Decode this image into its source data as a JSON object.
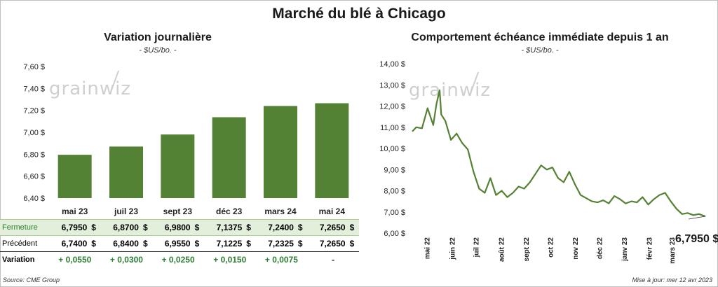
{
  "title": "Marché du blé à Chicago",
  "watermark": "grainwiz",
  "left_chart": {
    "title": "Variation  journalière",
    "subtitle": "- $US/bo. -"
  },
  "right_chart": {
    "title": "Comportement  échéance immédiate depuis 1 an",
    "subtitle": "- $US/bo. -",
    "last_value_label": "6,7950 $"
  },
  "table": {
    "close_label": "Fermeture",
    "prev_label": "Précédent",
    "var_label": "Variation",
    "currency": "$",
    "close": [
      "6,7950",
      "6,8700",
      "6,9800",
      "7,1375",
      "7,2400",
      "7,2650"
    ],
    "prev": [
      "6,7400",
      "6,8400",
      "6,9550",
      "7,1225",
      "7,2325",
      "7,2650"
    ],
    "variation": [
      "+ 0,0550",
      "+ 0,0300",
      "+ 0,0250",
      "+ 0,0150",
      "+ 0,0075",
      "-"
    ]
  },
  "footer": {
    "source": "Source: CME Group",
    "updated": "Mise à jour: mer 12 avr 2023"
  },
  "colors": {
    "bar": "#548235",
    "line": "#548235",
    "close_row_bg": "#e2efda"
  },
  "chart_data": [
    {
      "type": "bar",
      "categories": [
        "mai 23",
        "juil 23",
        "sept 23",
        "déc 23",
        "mars 24",
        "mai 24"
      ],
      "values": [
        6.795,
        6.87,
        6.98,
        7.1375,
        7.24,
        7.265
      ],
      "ylim": [
        6.4,
        7.6
      ],
      "yticks": [
        "6,40 $",
        "6,60 $",
        "6,80 $",
        "7,00 $",
        "7,20 $",
        "7,40 $",
        "7,60 $"
      ],
      "grid": false
    },
    {
      "type": "line",
      "x": [
        "2022-04-13",
        "2022-04-18",
        "2022-04-25",
        "2022-05-02",
        "2022-05-09",
        "2022-05-13",
        "2022-05-17",
        "2022-05-19",
        "2022-05-24",
        "2022-05-31",
        "2022-06-07",
        "2022-06-14",
        "2022-06-21",
        "2022-06-28",
        "2022-07-05",
        "2022-07-12",
        "2022-07-19",
        "2022-07-26",
        "2022-08-02",
        "2022-08-09",
        "2022-08-16",
        "2022-08-23",
        "2022-08-30",
        "2022-09-06",
        "2022-09-13",
        "2022-09-20",
        "2022-09-27",
        "2022-10-04",
        "2022-10-11",
        "2022-10-18",
        "2022-10-25",
        "2022-11-01",
        "2022-11-08",
        "2022-11-15",
        "2022-11-22",
        "2022-11-29",
        "2022-12-06",
        "2022-12-13",
        "2022-12-20",
        "2022-12-27",
        "2023-01-03",
        "2023-01-10",
        "2023-01-17",
        "2023-01-24",
        "2023-01-31",
        "2023-02-07",
        "2023-02-14",
        "2023-02-21",
        "2023-02-28",
        "2023-03-07",
        "2023-03-14",
        "2023-03-21",
        "2023-03-28",
        "2023-04-04",
        "2023-04-12"
      ],
      "y": [
        10.8,
        11.0,
        10.95,
        11.9,
        11.1,
        12.1,
        12.75,
        11.6,
        11.3,
        10.4,
        10.7,
        10.25,
        9.95,
        8.9,
        8.1,
        7.9,
        8.6,
        7.8,
        8.0,
        7.7,
        7.9,
        8.2,
        8.1,
        8.4,
        8.8,
        9.2,
        9.0,
        9.1,
        8.6,
        8.4,
        8.9,
        8.3,
        7.8,
        7.65,
        7.5,
        7.45,
        7.55,
        7.4,
        7.75,
        7.6,
        7.4,
        7.5,
        7.45,
        7.7,
        7.35,
        7.6,
        7.8,
        7.9,
        7.5,
        7.15,
        6.9,
        6.95,
        6.85,
        6.9,
        6.795
      ],
      "ylim": [
        6.0,
        14.0
      ],
      "yticks": [
        "6,00 $",
        "7,00 $",
        "8,00 $",
        "9,00 $",
        "10,00 $",
        "11,00 $",
        "12,00 $",
        "13,00 $",
        "14,00 $"
      ],
      "xticks": [
        "mai 22",
        "juin 22",
        "juil 22",
        "août 22",
        "sept 22",
        "oct 22",
        "nov 22",
        "déc 22",
        "janv 23",
        "févr 23",
        "mars 23"
      ],
      "grid": false
    }
  ]
}
